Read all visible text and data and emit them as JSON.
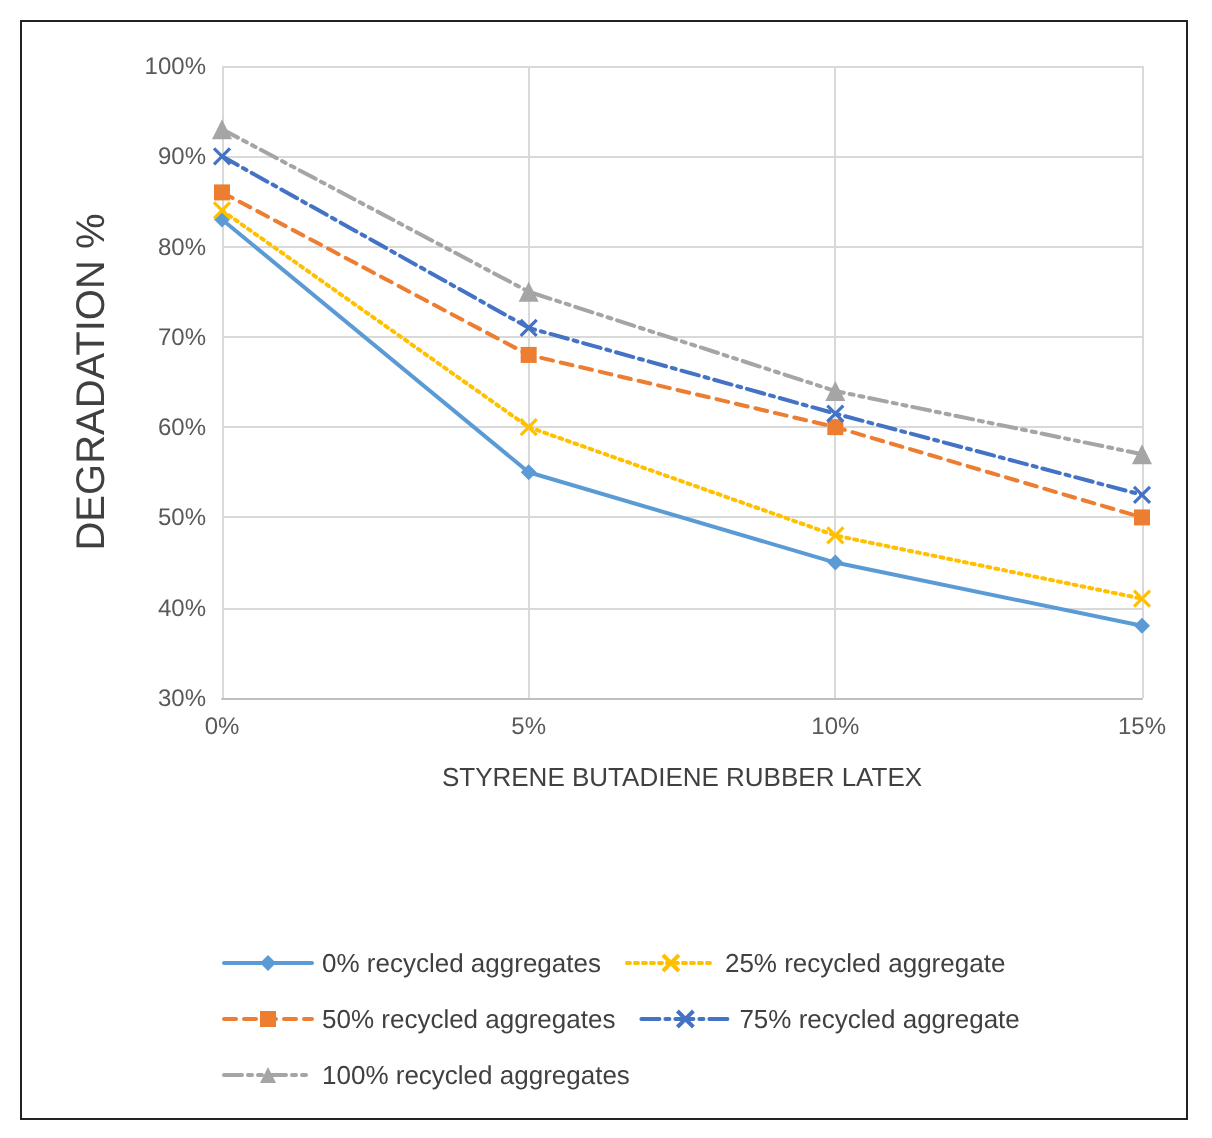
{
  "chart_data": {
    "type": "line",
    "xlabel": "STYRENE BUTADIENE RUBBER LATEX",
    "ylabel": "DEGRADATION %",
    "categories": [
      "0%",
      "5%",
      "10%",
      "15%"
    ],
    "series": [
      {
        "name": "0% recycled aggregates",
        "color": "#5b9bd5",
        "marker": "diamond",
        "line_style": "solid",
        "values": [
          83,
          55,
          45,
          38
        ]
      },
      {
        "name": "25% recycled aggregate",
        "color": "#ffc000",
        "marker": "cross",
        "line_style": "dotted",
        "values": [
          84,
          60,
          48,
          41
        ]
      },
      {
        "name": "50% recycled aggregates",
        "color": "#ed7d31",
        "marker": "square",
        "line_style": "dashed",
        "values": [
          86,
          68,
          60,
          50
        ]
      },
      {
        "name": "75% recycled aggregate",
        "color": "#4472c4",
        "marker": "cross",
        "line_style": "dashdot",
        "values": [
          90,
          71,
          61.5,
          52.5
        ]
      },
      {
        "name": "100% recycled aggregates",
        "color": "#a5a5a5",
        "marker": "triangle",
        "line_style": "dashdotdot",
        "values": [
          93,
          75,
          64,
          57
        ]
      }
    ],
    "ylim": [
      30,
      100
    ],
    "yticks": [
      {
        "value": 30,
        "label": "30%"
      },
      {
        "value": 40,
        "label": "40%"
      },
      {
        "value": 50,
        "label": "50%"
      },
      {
        "value": 60,
        "label": "60%"
      },
      {
        "value": 70,
        "label": "70%"
      },
      {
        "value": 80,
        "label": "80%"
      },
      {
        "value": 90,
        "label": "90%"
      },
      {
        "value": 100,
        "label": "100%"
      }
    ],
    "grid": true,
    "legend": "bottom"
  }
}
